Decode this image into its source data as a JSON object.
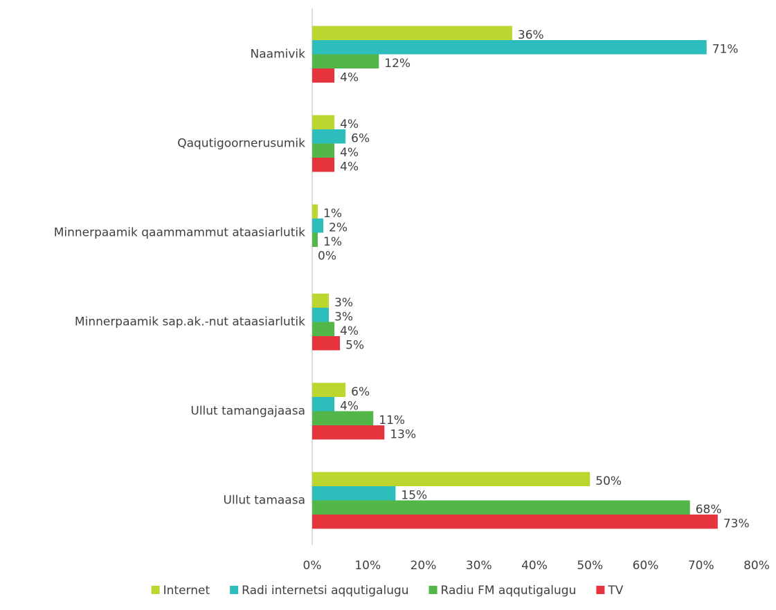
{
  "chart_data": {
    "type": "hbar",
    "categories": [
      "Naamivik",
      "Qaqutigoornerusumik",
      "Minnerpaamik qaammammut ataasiarlutik",
      "Minnerpaamik sap.ak.-nut ataasiarlutik",
      "Ullut tamangajaasa",
      "Ullut tamaasa"
    ],
    "series": [
      {
        "name": "Internet",
        "color": "#bdd52f",
        "values": [
          36,
          4,
          1,
          3,
          6,
          50
        ],
        "value_labels": [
          "36%",
          "4%",
          "1%",
          "3%",
          "6%",
          "50%"
        ]
      },
      {
        "name": "Radi internetsi aqqutigalugu",
        "color": "#2dbdbd",
        "values": [
          71,
          6,
          2,
          3,
          4,
          15
        ],
        "value_labels": [
          "71%",
          "6%",
          "2%",
          "3%",
          "4%",
          "15%"
        ]
      },
      {
        "name": "Radiu FM aqqutigalugu",
        "color": "#52b748",
        "values": [
          12,
          4,
          1,
          4,
          11,
          68
        ],
        "value_labels": [
          "12%",
          "4%",
          "1%",
          "4%",
          "11%",
          "68%"
        ]
      },
      {
        "name": "TV",
        "color": "#e6343f",
        "values": [
          4,
          4,
          0,
          5,
          13,
          73
        ],
        "value_labels": [
          "4%",
          "4%",
          "0%",
          "5%",
          "13%",
          "73%"
        ]
      }
    ],
    "xlim": [
      0,
      80
    ],
    "xticks": [
      {
        "value": 0,
        "label": "0%"
      },
      {
        "value": 10,
        "label": "10%"
      },
      {
        "value": 20,
        "label": "20%"
      },
      {
        "value": 30,
        "label": "30%"
      },
      {
        "value": 40,
        "label": "40%"
      },
      {
        "value": 50,
        "label": "50%"
      },
      {
        "value": 60,
        "label": "60%"
      },
      {
        "value": 70,
        "label": "70%"
      },
      {
        "value": 80,
        "label": "80%"
      }
    ],
    "grid": false,
    "legend": "bottom"
  }
}
